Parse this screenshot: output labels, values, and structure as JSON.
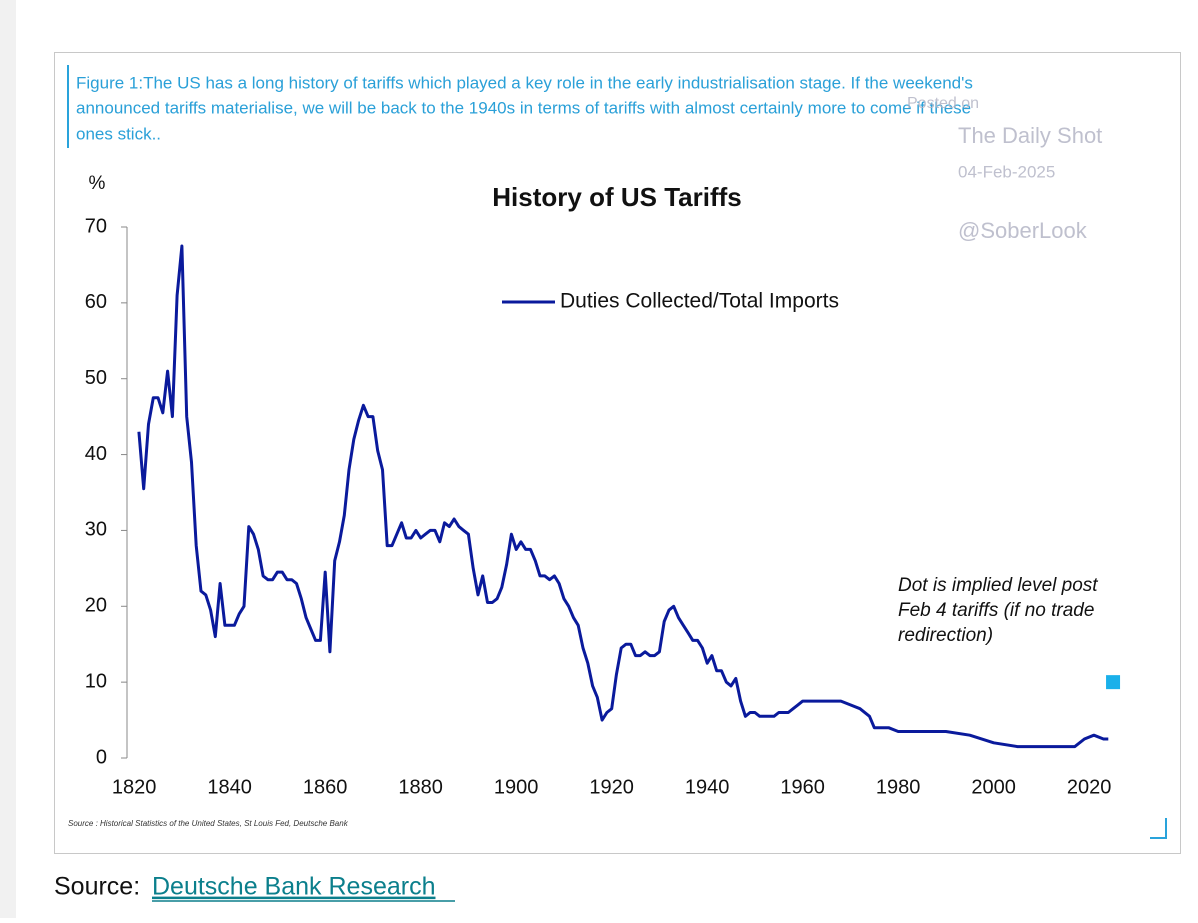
{
  "caption": [
    "Figure 1:The US has a long history of tariffs which played a key role in the early industrialisation stage. If the weekend's",
    "announced tariffs materialise, we will be back to the 1940s in terms of tariffs with almost certainly more to come if these",
    "ones stick.."
  ],
  "watermark": {
    "posted": "Posted on",
    "site": "The Daily Shot",
    "date": "04-Feb-2025",
    "handle": "@SoberLook"
  },
  "chart_data": {
    "type": "line",
    "title": "History of US Tariffs",
    "y_label": "%",
    "x": [
      1821,
      1822,
      1823,
      1824,
      1825,
      1826,
      1827,
      1828,
      1829,
      1830,
      1831,
      1832,
      1833,
      1834,
      1835,
      1836,
      1837,
      1838,
      1839,
      1840,
      1841,
      1842,
      1843,
      1844,
      1845,
      1846,
      1847,
      1848,
      1849,
      1850,
      1851,
      1852,
      1853,
      1854,
      1855,
      1856,
      1857,
      1858,
      1859,
      1860,
      1861,
      1862,
      1863,
      1864,
      1865,
      1866,
      1867,
      1868,
      1869,
      1870,
      1871,
      1872,
      1873,
      1874,
      1875,
      1876,
      1877,
      1878,
      1879,
      1880,
      1881,
      1882,
      1883,
      1884,
      1885,
      1886,
      1887,
      1888,
      1889,
      1890,
      1891,
      1892,
      1893,
      1894,
      1895,
      1896,
      1897,
      1898,
      1899,
      1900,
      1901,
      1902,
      1903,
      1904,
      1905,
      1906,
      1907,
      1908,
      1909,
      1910,
      1911,
      1912,
      1913,
      1914,
      1915,
      1916,
      1917,
      1918,
      1919,
      1920,
      1921,
      1922,
      1923,
      1924,
      1925,
      1926,
      1927,
      1928,
      1929,
      1930,
      1931,
      1932,
      1933,
      1934,
      1935,
      1936,
      1937,
      1938,
      1939,
      1940,
      1941,
      1942,
      1943,
      1944,
      1945,
      1946,
      1947,
      1948,
      1949,
      1950,
      1951,
      1952,
      1953,
      1954,
      1955,
      1956,
      1957,
      1958,
      1959,
      1960,
      1962,
      1964,
      1966,
      1968,
      1970,
      1972,
      1974,
      1975,
      1978,
      1980,
      1982,
      1986,
      1990,
      1995,
      2000,
      2005,
      2010,
      2015,
      2017,
      2019,
      2021,
      2023,
      2024
    ],
    "series": [
      {
        "name": "Duties Collected/Total Imports",
        "color": "#0a1a9c",
        "values": [
          43,
          35.5,
          44,
          47.5,
          47.5,
          45.5,
          51,
          45,
          61,
          67.5,
          45,
          39,
          28,
          22,
          21.5,
          19.5,
          16,
          23,
          17.5,
          17.5,
          17.5,
          19,
          20,
          30.5,
          29.5,
          27.5,
          24,
          23.5,
          23.5,
          24.5,
          24.5,
          23.5,
          23.5,
          23,
          21,
          18.5,
          17,
          15.5,
          15.5,
          24.5,
          14,
          26,
          28.5,
          32,
          38,
          42,
          44.5,
          46.5,
          45,
          45,
          40.5,
          38,
          28,
          28,
          29.5,
          31,
          29,
          29,
          30,
          29,
          29.5,
          30,
          30,
          28.5,
          31,
          30.5,
          31.5,
          30.5,
          30,
          29.5,
          25,
          21.5,
          24,
          20.5,
          20.5,
          21,
          22.5,
          25.5,
          29.5,
          27.5,
          28.5,
          27.5,
          27.5,
          26,
          24,
          24,
          23.5,
          24,
          23,
          21,
          20,
          18.5,
          17.5,
          14.5,
          12.5,
          9.5,
          8,
          5,
          6,
          6.5,
          11,
          14.5,
          15,
          15,
          13.5,
          13.5,
          14,
          13.5,
          13.5,
          14,
          18,
          19.5,
          20,
          18.5,
          17.5,
          16.5,
          15.5,
          15.5,
          14.5,
          12.5,
          13.5,
          11.5,
          11.5,
          10,
          9.5,
          10.5,
          7.5,
          5.5,
          6,
          6,
          5.5,
          5.5,
          5.5,
          5.5,
          6,
          6,
          6,
          6.5,
          7,
          7.5,
          7.5,
          7.5,
          7.5,
          7.5,
          7,
          6.5,
          5.5,
          4,
          4,
          3.5,
          3.5,
          3.5,
          3.5,
          3,
          2,
          1.5,
          1.5,
          1.5,
          1.5,
          2.5,
          3,
          2.5,
          2.5
        ]
      }
    ],
    "marker": {
      "x": 2025,
      "value": 10,
      "color": "#1ab0ea"
    },
    "annotation": [
      "Dot is implied level post",
      "Feb 4 tariffs (if no trade",
      "redirection)"
    ],
    "xlim": [
      1818.5,
      2027
    ],
    "xticks": [
      1820,
      1840,
      1860,
      1880,
      1900,
      1920,
      1940,
      1960,
      1980,
      2000,
      2020
    ],
    "ylim": [
      0,
      70
    ],
    "yticks": [
      0,
      10,
      20,
      30,
      40,
      50,
      60,
      70
    ],
    "source": "Source : Historical Statistics of the United States, St Louis Fed, Deutsche Bank"
  },
  "footer": {
    "label": "Source: ",
    "link": "Deutsche Bank Research"
  }
}
